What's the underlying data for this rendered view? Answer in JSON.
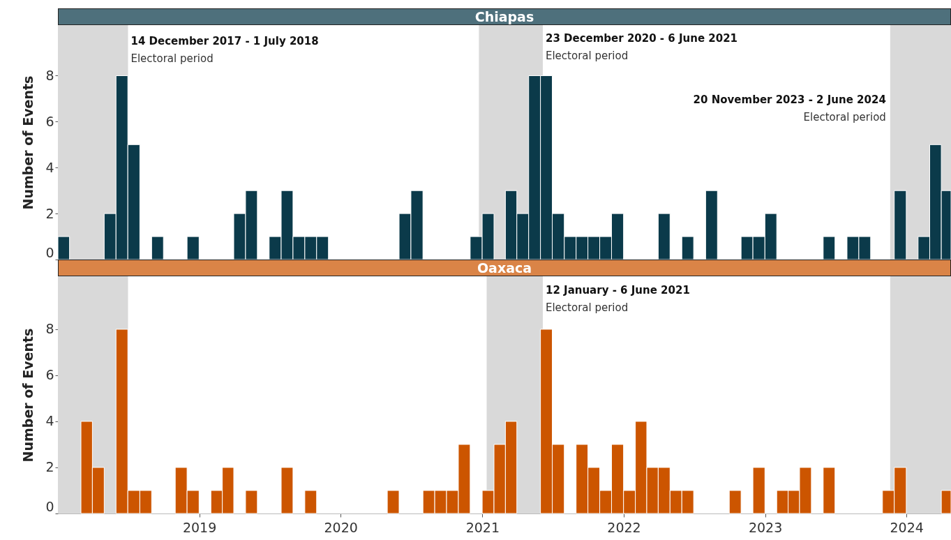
{
  "chart_data": [
    {
      "type": "bar",
      "title": "Chiapas",
      "ylabel": "Number of Events",
      "color": "#0b3a4a",
      "tick_labels": "y",
      "x": [
        "2018-01-16",
        "2018-02-15",
        "2018-03-16",
        "2018-04-15",
        "2018-05-16",
        "2018-06-15",
        "2018-07-16",
        "2018-08-16",
        "2018-09-15",
        "2018-10-16",
        "2018-11-15",
        "2018-12-16",
        "2019-01-16",
        "2019-02-15",
        "2019-03-16",
        "2019-04-15",
        "2019-05-16",
        "2019-06-15",
        "2019-07-16",
        "2019-08-16",
        "2019-09-15",
        "2019-10-16",
        "2019-11-15",
        "2019-12-16",
        "2020-01-16",
        "2020-02-15",
        "2020-03-16",
        "2020-04-15",
        "2020-05-16",
        "2020-06-15",
        "2020-07-16",
        "2020-08-16",
        "2020-09-15",
        "2020-10-16",
        "2020-11-15",
        "2020-12-16",
        "2021-01-16",
        "2021-02-15",
        "2021-03-16",
        "2021-04-15",
        "2021-05-16",
        "2021-06-15",
        "2021-07-16",
        "2021-08-16",
        "2021-09-15",
        "2021-10-16",
        "2021-11-15",
        "2021-12-16",
        "2022-01-16",
        "2022-02-15",
        "2022-03-16",
        "2022-04-15",
        "2022-05-16",
        "2022-06-15",
        "2022-07-16",
        "2022-08-16",
        "2022-09-15",
        "2022-10-16",
        "2022-11-15",
        "2022-12-16",
        "2023-01-16",
        "2023-02-15",
        "2023-03-16",
        "2023-04-15",
        "2023-05-16",
        "2023-06-15",
        "2023-07-16",
        "2023-08-16",
        "2023-09-15",
        "2023-10-16",
        "2023-11-15",
        "2023-12-16",
        "2024-01-16",
        "2024-02-15",
        "2024-03-16",
        "2024-04-15"
      ],
      "values": [
        1,
        0,
        0,
        0,
        2,
        8,
        5,
        0,
        1,
        0,
        0,
        1,
        0,
        0,
        0,
        2,
        3,
        0,
        1,
        3,
        1,
        1,
        1,
        0,
        0,
        0,
        0,
        0,
        0,
        2,
        3,
        0,
        0,
        0,
        0,
        1,
        2,
        0,
        3,
        2,
        8,
        8,
        2,
        1,
        1,
        1,
        1,
        2,
        0,
        0,
        0,
        2,
        0,
        1,
        0,
        3,
        0,
        0,
        1,
        1,
        2,
        0,
        0,
        0,
        0,
        1,
        0,
        1,
        1,
        0,
        0,
        3,
        0,
        1,
        5,
        3
      ],
      "xlim": [
        "2018-01-01",
        "2024-04-25"
      ],
      "xticks": [
        "2019",
        "2020",
        "2021",
        "2022",
        "2023",
        "2024"
      ],
      "ylim": [
        0,
        10.2
      ],
      "yticks": [
        0,
        2,
        4,
        6,
        8
      ],
      "bands": [
        {
          "axis": "x",
          "from": "2017-12-14",
          "to": "2018-07-01",
          "label": "14 December 2017 - 1 July 2018",
          "color": "#d9d9d9"
        },
        {
          "axis": "x",
          "from": "2020-12-23",
          "to": "2021-06-06",
          "label": "23 December 2020 - 6 June 2021",
          "color": "#d9d9d9"
        },
        {
          "axis": "x",
          "from": "2023-11-20",
          "to": "2024-06-02",
          "label": "20 November 2023 - 2 June 2024",
          "color": "#d9d9d9"
        }
      ],
      "annotations": [
        {
          "text": "Electoral period",
          "x": "2018-07-01",
          "y": 8.75
        },
        {
          "text": "Electoral period",
          "x": "2021-06-06",
          "y": 8.85
        },
        {
          "text": "Electoral period",
          "x": "2023-11-20",
          "y": 6.2
        }
      ]
    },
    {
      "type": "bar",
      "title": "Oaxaca",
      "ylabel": "Number of Events",
      "color": "#cc5500",
      "x": [
        "2018-01-16",
        "2018-02-15",
        "2018-03-16",
        "2018-04-15",
        "2018-05-16",
        "2018-06-15",
        "2018-07-16",
        "2018-08-16",
        "2018-09-15",
        "2018-10-16",
        "2018-11-15",
        "2018-12-16",
        "2019-01-16",
        "2019-02-15",
        "2019-03-16",
        "2019-04-15",
        "2019-05-16",
        "2019-06-15",
        "2019-07-16",
        "2019-08-16",
        "2019-09-15",
        "2019-10-16",
        "2019-11-15",
        "2019-12-16",
        "2020-01-16",
        "2020-02-15",
        "2020-03-16",
        "2020-04-15",
        "2020-05-16",
        "2020-06-15",
        "2020-07-16",
        "2020-08-16",
        "2020-09-15",
        "2020-10-16",
        "2020-11-15",
        "2020-12-16",
        "2021-01-16",
        "2021-02-15",
        "2021-03-16",
        "2021-04-15",
        "2021-05-16",
        "2021-06-15",
        "2021-07-16",
        "2021-08-16",
        "2021-09-15",
        "2021-10-16",
        "2021-11-15",
        "2021-12-16",
        "2022-01-16",
        "2022-02-15",
        "2022-03-16",
        "2022-04-15",
        "2022-05-16",
        "2022-06-15",
        "2022-07-16",
        "2022-08-16",
        "2022-09-15",
        "2022-10-16",
        "2022-11-15",
        "2022-12-16",
        "2023-01-16",
        "2023-02-15",
        "2023-03-16",
        "2023-04-15",
        "2023-05-16",
        "2023-06-15",
        "2023-07-16",
        "2023-08-16",
        "2023-09-15",
        "2023-10-16",
        "2023-11-15",
        "2023-12-16",
        "2024-01-16",
        "2024-02-15",
        "2024-03-16",
        "2024-04-15"
      ],
      "values": [
        0,
        0,
        4,
        2,
        0,
        8,
        1,
        1,
        0,
        0,
        2,
        1,
        0,
        1,
        2,
        0,
        1,
        0,
        0,
        2,
        0,
        1,
        0,
        0,
        0,
        0,
        0,
        0,
        1,
        0,
        0,
        1,
        1,
        1,
        3,
        0,
        1,
        3,
        4,
        0,
        0,
        8,
        3,
        0,
        3,
        2,
        1,
        3,
        1,
        4,
        2,
        2,
        1,
        1,
        0,
        0,
        0,
        1,
        0,
        2,
        0,
        1,
        1,
        2,
        0,
        2,
        0,
        0,
        0,
        0,
        1,
        2,
        0,
        0,
        0,
        1
      ],
      "xlim": [
        "2018-01-01",
        "2024-04-25"
      ],
      "xticks": [
        "2019",
        "2020",
        "2021",
        "2022",
        "2023",
        "2024"
      ],
      "ylim": [
        0,
        10.3
      ],
      "yticks": [
        0,
        2,
        4,
        6,
        8
      ],
      "bands": [
        {
          "axis": "x",
          "from": "2017-12-14",
          "to": "2018-07-01",
          "label": null,
          "color": "#d9d9d9"
        },
        {
          "axis": "x",
          "from": "2021-01-12",
          "to": "2021-06-06",
          "label": "12 January - 6 June 2021",
          "color": "#d9d9d9"
        },
        {
          "axis": "x",
          "from": "2023-11-20",
          "to": "2024-06-02",
          "label": null,
          "color": "#d9d9d9"
        }
      ],
      "annotations": [
        {
          "text": "Electoral period",
          "x": "2021-06-06",
          "y": 8.95
        }
      ]
    }
  ]
}
